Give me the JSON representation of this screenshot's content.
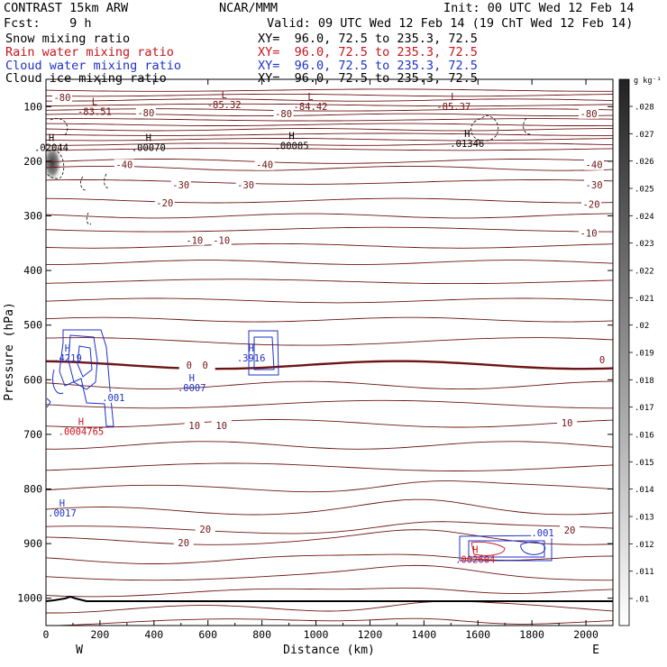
{
  "header": {
    "title_left": "CONTRAST 15km ARW",
    "title_center": "NCAR/MMM",
    "init": "Init: 00 UTC Wed 12 Feb 14",
    "fcst": "Fcst:    9 h",
    "valid": "Valid: 09 UTC Wed 12 Feb 14 (19 ChT Wed 12 Feb 14)",
    "fields": [
      {
        "name": "Snow mixing ratio",
        "xy": "XY=  96.0, 72.5 to 235.3, 72.5",
        "color": "#000000"
      },
      {
        "name": "Rain water mixing ratio",
        "xy": "XY=  96.0, 72.5 to 235.3, 72.5",
        "color": "#c8141e"
      },
      {
        "name": "Cloud water mixing ratio",
        "xy": "XY=  96.0, 72.5 to 235.3, 72.5",
        "color": "#1e32c8"
      },
      {
        "name": "Cloud ice mixing ratio",
        "xy": "XY=  96.0, 72.5 to 235.3, 72.5",
        "color": "#000000"
      }
    ]
  },
  "chart_data": {
    "type": "contour-cross-section",
    "xlabel": "Distance (km)",
    "ylabel": "Pressure (hPa)",
    "xlim": [
      0,
      2100
    ],
    "ylim": [
      1050,
      50
    ],
    "x_ticks": [
      0,
      200,
      400,
      600,
      800,
      1000,
      1200,
      1400,
      1600,
      1800,
      2000
    ],
    "y_ticks": [
      100,
      200,
      300,
      400,
      500,
      600,
      700,
      800,
      900,
      1000
    ],
    "x_end_labels": {
      "left": "W",
      "right": "E"
    },
    "colorbar": {
      "unit": "g kg⁻¹",
      "ticks": [
        ".028",
        ".027",
        ".026",
        ".025",
        ".024",
        ".023",
        ".022",
        ".021",
        ".02",
        ".019",
        ".018",
        ".017",
        ".016",
        ".015",
        ".014",
        ".013",
        ".012",
        ".011",
        ".01"
      ]
    },
    "temperature_contours": [
      {
        "value": -80,
        "approx_pressure": 105
      },
      {
        "value": -40,
        "approx_pressure": 213
      },
      {
        "value": -30,
        "approx_pressure": 238
      },
      {
        "value": -20,
        "approx_pressure": 272
      },
      {
        "value": -10,
        "approx_pressure": 325
      },
      {
        "value": 0,
        "approx_pressure": 573
      },
      {
        "value": 10,
        "approx_pressure": 680
      },
      {
        "value": 20,
        "approx_pressure": 895
      }
    ],
    "temperature_labels": [
      {
        "text": "-80",
        "x": 60,
        "p": 85
      },
      {
        "text": "-80",
        "x": 370,
        "p": 113
      },
      {
        "text": "-80",
        "x": 880,
        "p": 114
      },
      {
        "text": "-80",
        "x": 2010,
        "p": 114
      },
      {
        "text": "-40",
        "x": 290,
        "p": 208
      },
      {
        "text": "-40",
        "x": 810,
        "p": 208
      },
      {
        "text": "-40",
        "x": 2030,
        "p": 208
      },
      {
        "text": "-30",
        "x": 500,
        "p": 245
      },
      {
        "text": "-30",
        "x": 740,
        "p": 245
      },
      {
        "text": "-30",
        "x": 2030,
        "p": 245
      },
      {
        "text": "-20",
        "x": 440,
        "p": 278
      },
      {
        "text": "-20",
        "x": 2020,
        "p": 280
      },
      {
        "text": "-10",
        "x": 550,
        "p": 346
      },
      {
        "text": "-10",
        "x": 650,
        "p": 346
      },
      {
        "text": "-10",
        "x": 2010,
        "p": 333
      },
      {
        "text": "0",
        "x": 530,
        "p": 575
      },
      {
        "text": "0",
        "x": 590,
        "p": 575
      },
      {
        "text": "0",
        "x": 2060,
        "p": 565
      },
      {
        "text": "10",
        "x": 550,
        "p": 685
      },
      {
        "text": "10",
        "x": 650,
        "p": 685
      },
      {
        "text": "10",
        "x": 1930,
        "p": 680
      },
      {
        "text": "20",
        "x": 510,
        "p": 900
      },
      {
        "text": "20",
        "x": 590,
        "p": 875
      },
      {
        "text": "20",
        "x": 1940,
        "p": 877
      }
    ],
    "extrema": [
      {
        "mark": "L",
        "x": 180,
        "p": 97,
        "value": "-83.51",
        "color": "#6e1414"
      },
      {
        "mark": "L",
        "x": 660,
        "p": 85,
        "value": "-85.32",
        "color": "#6e1414"
      },
      {
        "mark": "L",
        "x": 980,
        "p": 88,
        "value": "-84.42",
        "color": "#6e1414"
      },
      {
        "mark": "L",
        "x": 1510,
        "p": 88,
        "value": "-85.37",
        "color": "#6e1414"
      },
      {
        "mark": "H",
        "x": 20,
        "p": 163,
        "value": ".02044",
        "color": "#000000"
      },
      {
        "mark": "H",
        "x": 380,
        "p": 163,
        "value": ".00070",
        "color": "#000000"
      },
      {
        "mark": "H",
        "x": 910,
        "p": 160,
        "value": ".00005",
        "color": "#000000"
      },
      {
        "mark": "H",
        "x": 1560,
        "p": 156,
        "value": ".01346",
        "color": "#000000"
      },
      {
        "mark": "H",
        "x": 80,
        "p": 548,
        "value": ".4219",
        "color": "#1e32c8"
      },
      {
        "mark": "H",
        "x": 760,
        "p": 548,
        "value": ".3916",
        "color": "#1e32c8"
      },
      {
        "mark": "H",
        "x": 540,
        "p": 603,
        "value": ".0007",
        "color": "#1e32c8"
      },
      {
        "mark": "H",
        "x": 130,
        "p": 683,
        "value": ".0004765",
        "color": "#c8141e"
      },
      {
        "mark": "H",
        "x": 60,
        "p": 832,
        "value": ".0017",
        "color": "#1e32c8"
      },
      {
        "mark": "H",
        "x": 1590,
        "p": 917,
        "value": ".002604",
        "color": "#c8141e"
      }
    ],
    "cloud_water_labels": [
      {
        "text": ".001",
        "x": 250,
        "p": 634
      },
      {
        "text": ".001",
        "x": 1840,
        "p": 882
      }
    ]
  }
}
